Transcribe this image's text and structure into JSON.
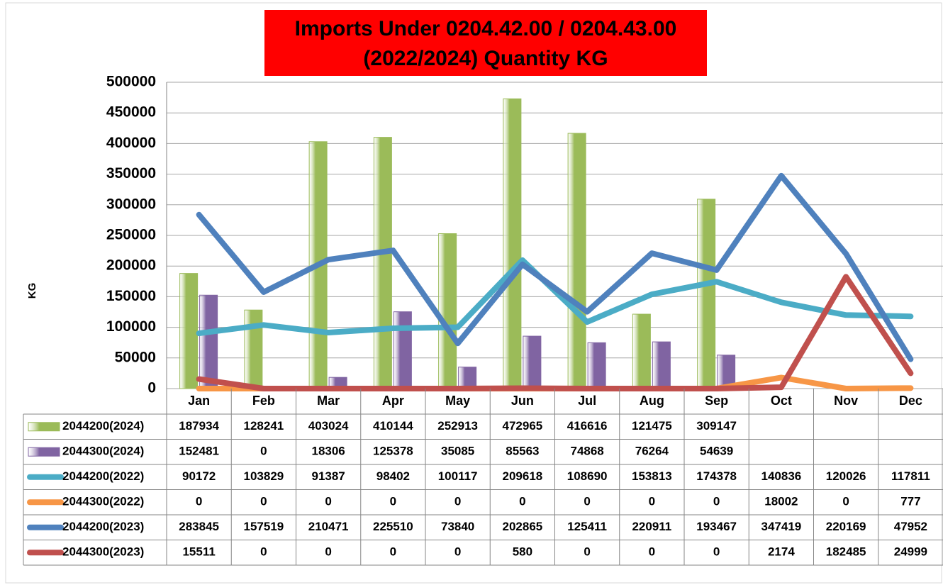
{
  "chart_data": {
    "type": "bar-line-table",
    "title": [
      "Imports Under   0204.42.00 / 0204.43.00",
      "(2022/2024)  Quantity KG"
    ],
    "y_label": "KG",
    "categories": [
      "Jan",
      "Feb",
      "Mar",
      "Apr",
      "May",
      "Jun",
      "Jul",
      "Aug",
      "Sep",
      "Oct",
      "Nov",
      "Dec"
    ],
    "ylim": [
      0,
      500000
    ],
    "yticks": [
      0,
      50000,
      100000,
      150000,
      200000,
      250000,
      300000,
      350000,
      400000,
      450000,
      500000
    ],
    "grid": true,
    "series": [
      {
        "name": "2044200(2024)",
        "kind": "bar",
        "color": "#9bbb59",
        "values": [
          187934,
          128241,
          403024,
          410144,
          252913,
          472965,
          416616,
          121475,
          309147,
          null,
          null,
          null
        ]
      },
      {
        "name": "2044300(2024)",
        "kind": "bar",
        "color": "#8064a2",
        "values": [
          152481,
          0,
          18306,
          125378,
          35085,
          85563,
          74868,
          76264,
          54639,
          null,
          null,
          null
        ]
      },
      {
        "name": "2044200(2022)",
        "kind": "line",
        "color": "#4bacc6",
        "values": [
          90172,
          103829,
          91387,
          98402,
          100117,
          209618,
          108690,
          153813,
          174378,
          140836,
          120026,
          117811
        ]
      },
      {
        "name": "2044300(2022)",
        "kind": "line",
        "color": "#f79646",
        "values": [
          0,
          0,
          0,
          0,
          0,
          0,
          0,
          0,
          0,
          18002,
          0,
          777
        ]
      },
      {
        "name": "2044200(2023)",
        "kind": "line",
        "color": "#4f81bd",
        "values": [
          283845,
          157519,
          210471,
          225510,
          73840,
          202865,
          125411,
          220911,
          193467,
          347419,
          220169,
          47952
        ]
      },
      {
        "name": "2044300(2023)",
        "kind": "line",
        "color": "#c0504d",
        "values": [
          15511,
          0,
          0,
          0,
          0,
          580,
          0,
          0,
          0,
          2174,
          182485,
          24999
        ]
      }
    ]
  }
}
